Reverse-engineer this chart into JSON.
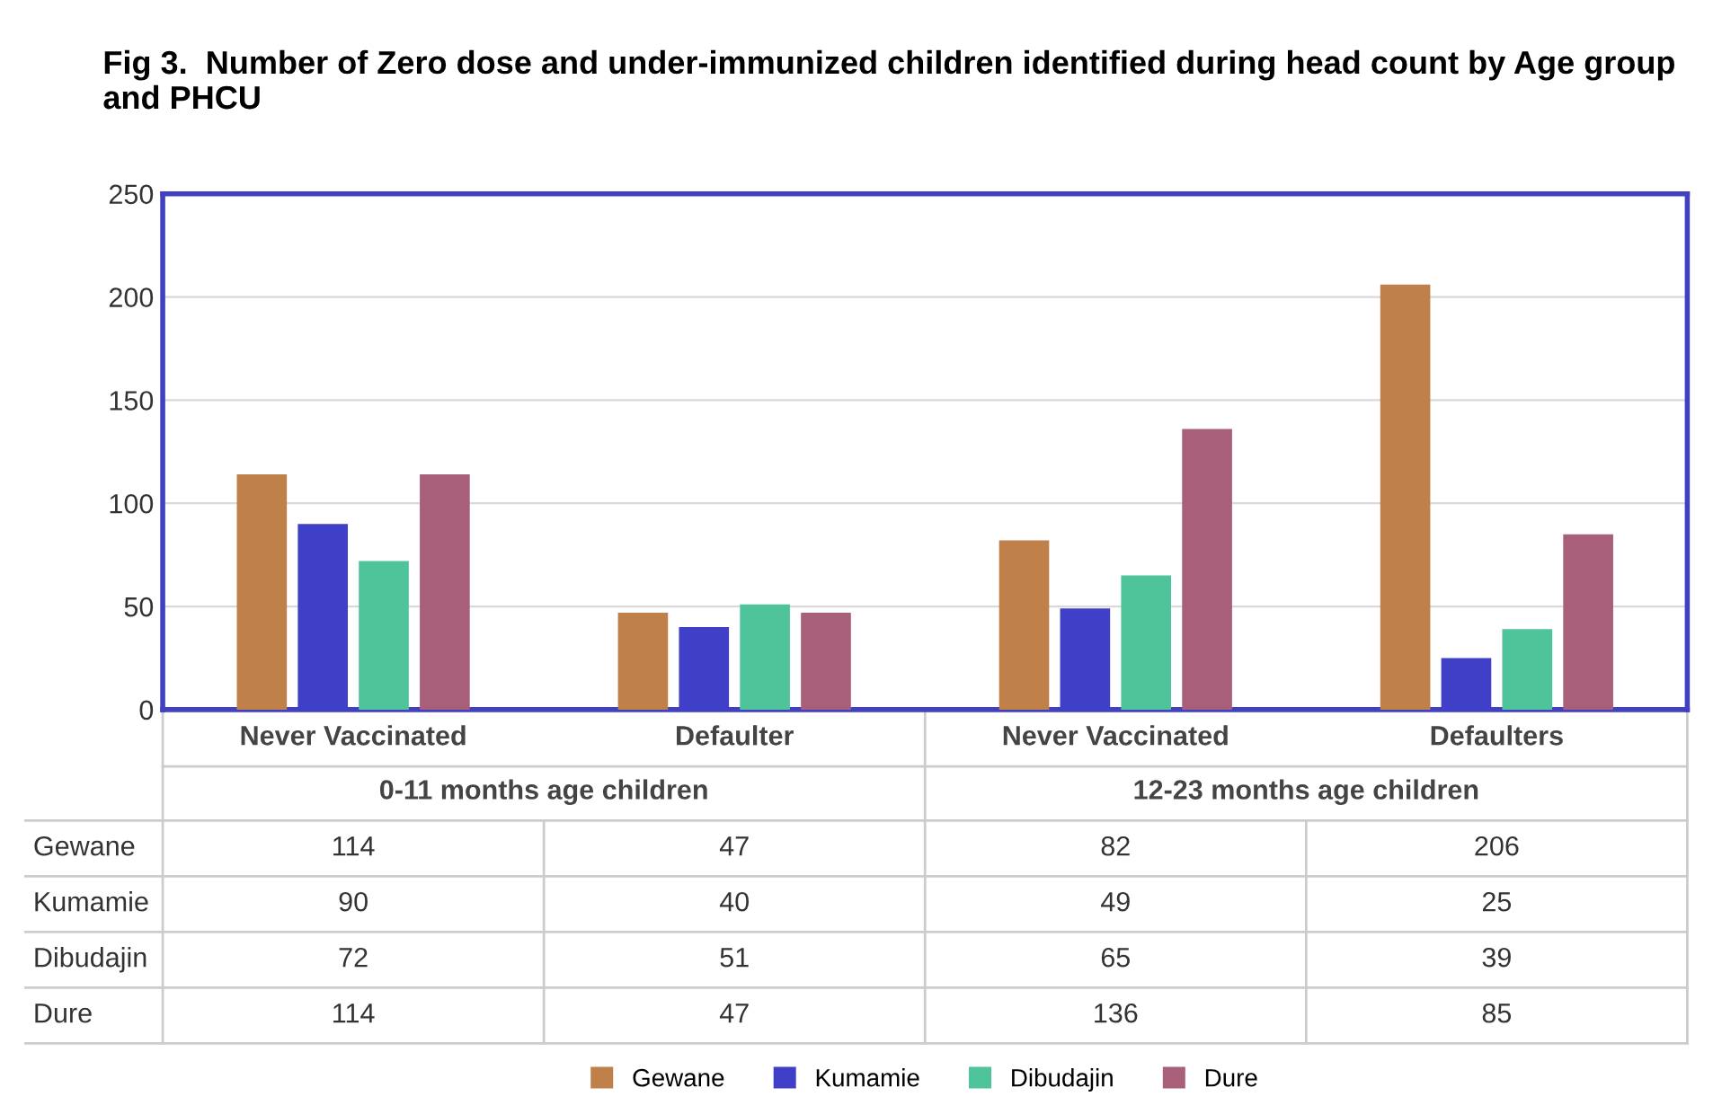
{
  "chart_data": {
    "type": "bar",
    "title": "Fig 3.  Number of Zero dose and under-immunized children identified during head count by Age group and PHCU",
    "categories": [
      "Never Vaccinated",
      "Defaulter",
      "Never Vaccinated",
      "Defaulters"
    ],
    "series": [
      {
        "name": "Gewane",
        "color": "#c0804a",
        "values": [
          114,
          47,
          82,
          206
        ]
      },
      {
        "name": "Kumamie",
        "color": "#3f3fc8",
        "values": [
          90,
          40,
          49,
          25
        ]
      },
      {
        "name": "Dibudajin",
        "color": "#4fc49a",
        "values": [
          72,
          51,
          65,
          39
        ]
      },
      {
        "name": "Dure",
        "color": "#a8607a",
        "values": [
          114,
          47,
          136,
          85
        ]
      }
    ],
    "annotations": [
      "0-11 months age children",
      "12-23 months age children"
    ],
    "ylim": [
      0,
      250
    ],
    "yticks": [
      0,
      50,
      100,
      150,
      200,
      250
    ],
    "grid": "y",
    "legend": "bottom",
    "data_labels": true
  }
}
